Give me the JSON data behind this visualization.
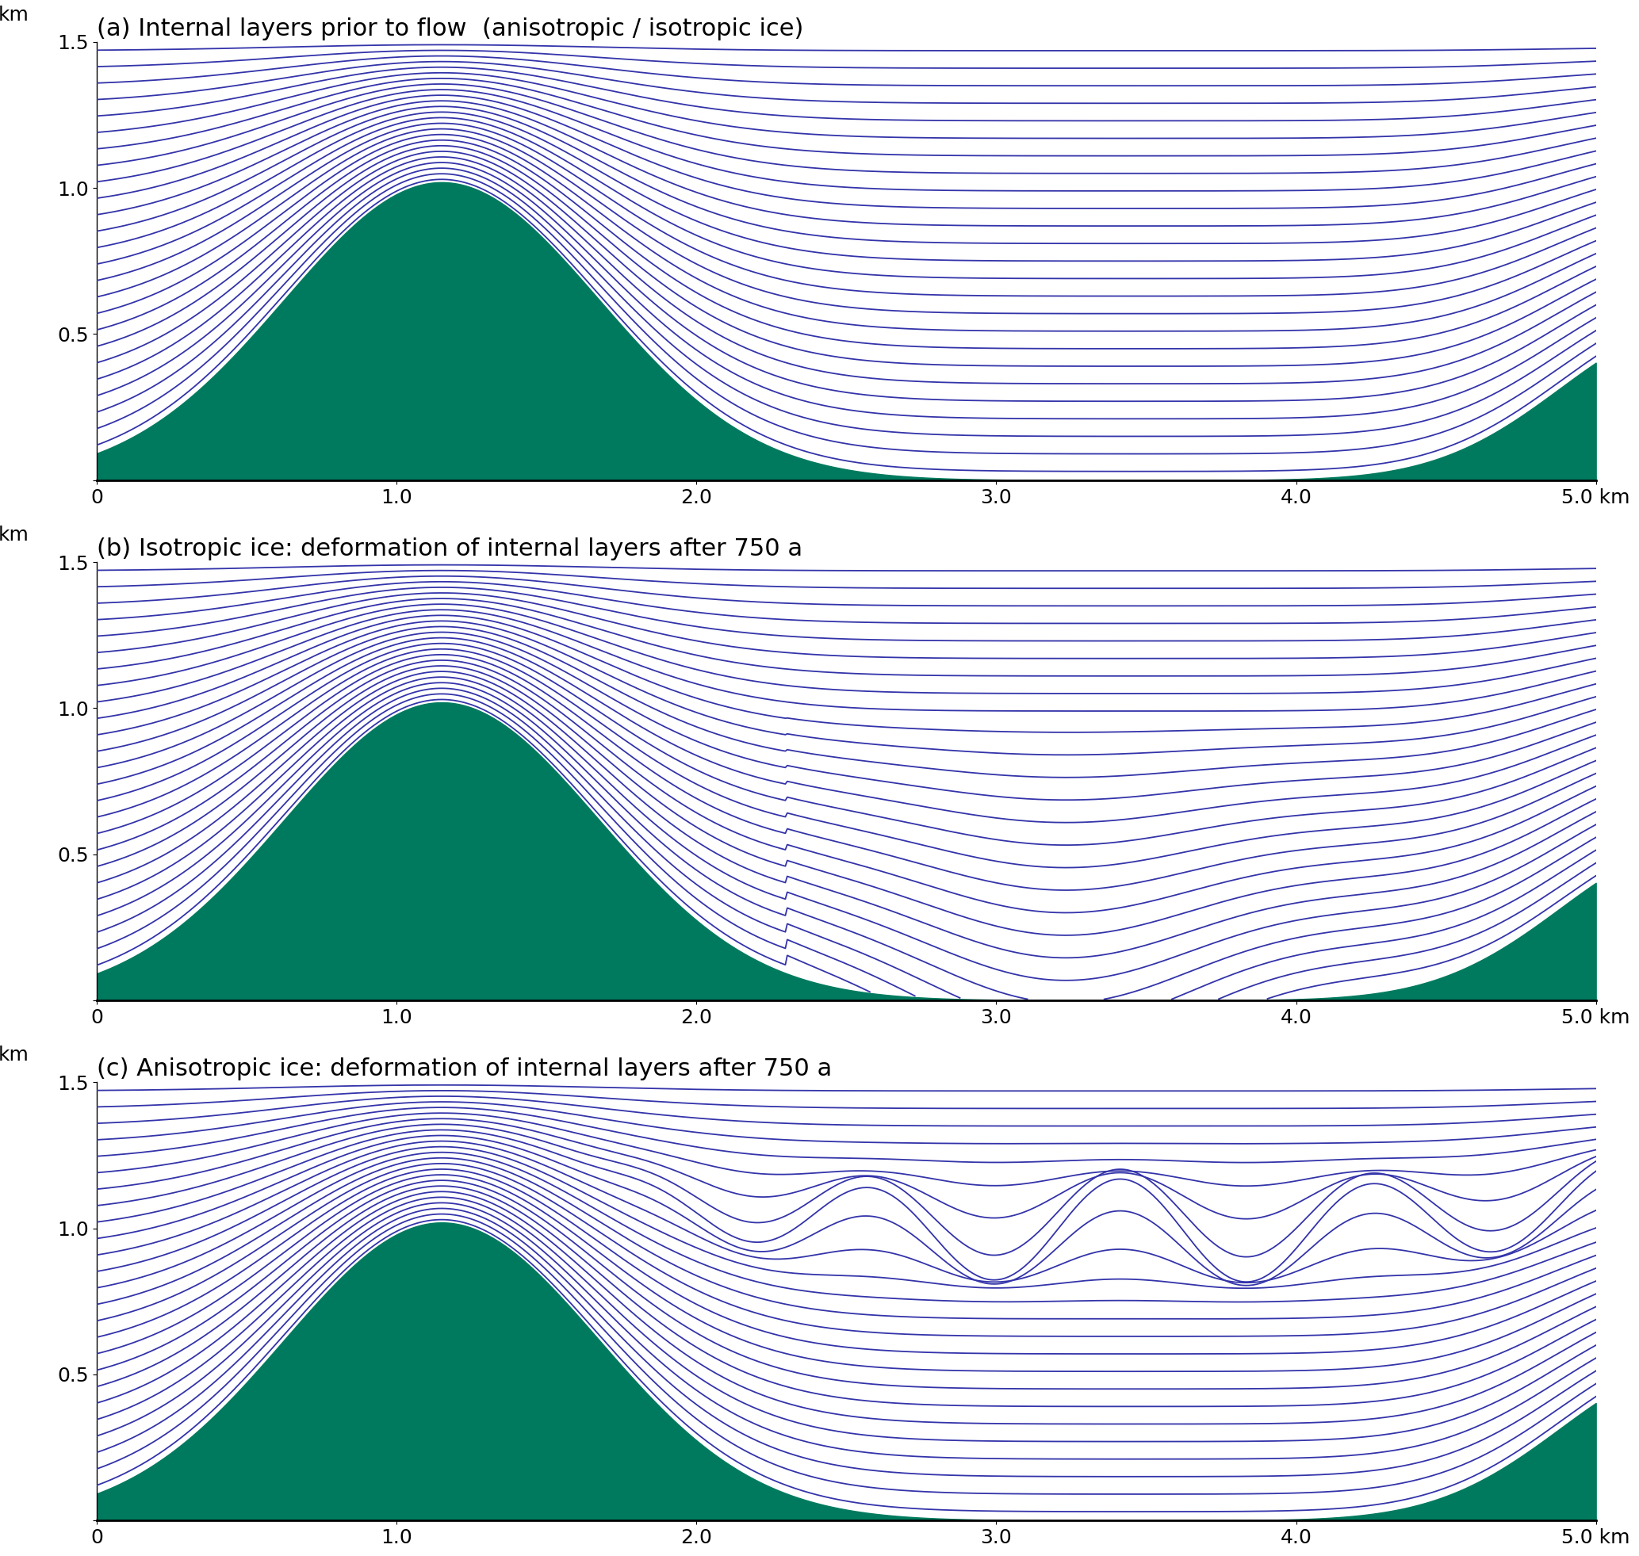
{
  "title_a": "(a) Internal layers prior to flow  (anisotropic / isotropic ice)",
  "title_b": "(b) Isotropic ice: deformation of internal layers after 750 a",
  "title_c": "(c) Anisotropic ice: deformation of internal layers after 750 a",
  "xlim": [
    0,
    5.0
  ],
  "ylim": [
    0,
    1.5
  ],
  "xticks": [
    0,
    1.0,
    2.0,
    3.0,
    4.0,
    5.0
  ],
  "yticks": [
    0,
    0.5,
    1.0,
    1.5
  ],
  "xlabel_unit": "km",
  "ylabel_unit": "km",
  "bedrock_color": "#007A5E",
  "line_color": "#3333AA",
  "line_width": 1.3,
  "n_layers": 25,
  "figsize": [
    20.67,
    19.63
  ],
  "title_fontsize": 22,
  "tick_fontsize": 18,
  "background_color": "#ffffff"
}
